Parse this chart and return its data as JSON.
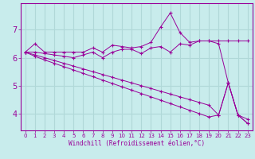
{
  "xlabel": "Windchill (Refroidissement éolien,°C)",
  "bg_color": "#c8ecec",
  "grid_color": "#b0d8d8",
  "line_color": "#990099",
  "xlim": [
    -0.5,
    23.5
  ],
  "ylim": [
    3.4,
    7.95
  ],
  "yticks": [
    4,
    5,
    6,
    7
  ],
  "xticks": [
    0,
    1,
    2,
    3,
    4,
    5,
    6,
    7,
    8,
    9,
    10,
    11,
    12,
    13,
    14,
    15,
    16,
    17,
    18,
    19,
    20,
    21,
    22,
    23
  ],
  "series": [
    {
      "x": [
        0,
        1,
        2,
        3,
        4,
        5,
        6,
        7,
        8,
        9,
        10,
        11,
        12,
        13,
        14,
        15,
        16,
        17,
        18,
        19,
        20,
        21,
        22,
        23
      ],
      "y": [
        6.2,
        6.5,
        6.2,
        6.2,
        6.2,
        6.2,
        6.2,
        6.35,
        6.2,
        6.45,
        6.4,
        6.35,
        6.4,
        6.55,
        7.1,
        7.6,
        6.9,
        6.55,
        6.6,
        6.6,
        6.6,
        6.6,
        6.6,
        6.6
      ]
    },
    {
      "x": [
        0,
        1,
        2,
        3,
        4,
        5,
        6,
        7,
        8,
        9,
        10,
        11,
        12,
        13,
        14,
        15,
        16,
        17,
        18,
        19,
        20,
        21,
        22,
        23
      ],
      "y": [
        6.2,
        6.2,
        6.15,
        6.1,
        6.05,
        6.0,
        6.1,
        6.2,
        6.0,
        6.2,
        6.3,
        6.3,
        6.15,
        6.35,
        6.4,
        6.2,
        6.5,
        6.45,
        6.6,
        6.6,
        6.5,
        5.1,
        3.95,
        3.8
      ]
    },
    {
      "x": [
        0,
        1,
        2,
        3,
        4,
        5,
        6,
        7,
        8,
        9,
        10,
        11,
        12,
        13,
        14,
        15,
        16,
        17,
        18,
        19,
        20,
        21,
        22,
        23
      ],
      "y": [
        6.2,
        6.1,
        6.0,
        5.9,
        5.8,
        5.7,
        5.6,
        5.5,
        5.4,
        5.3,
        5.2,
        5.1,
        5.0,
        4.9,
        4.8,
        4.7,
        4.6,
        4.5,
        4.4,
        4.3,
        3.95,
        5.1,
        3.95,
        3.65
      ]
    },
    {
      "x": [
        0,
        1,
        2,
        3,
        4,
        5,
        6,
        7,
        8,
        9,
        10,
        11,
        12,
        13,
        14,
        15,
        16,
        17,
        18,
        19,
        20,
        21,
        22,
        23
      ],
      "y": [
        6.2,
        6.05,
        5.92,
        5.8,
        5.68,
        5.56,
        5.44,
        5.32,
        5.2,
        5.08,
        4.96,
        4.84,
        4.72,
        4.6,
        4.48,
        4.36,
        4.24,
        4.12,
        4.0,
        3.88,
        3.95,
        5.1,
        3.95,
        3.65
      ]
    }
  ]
}
